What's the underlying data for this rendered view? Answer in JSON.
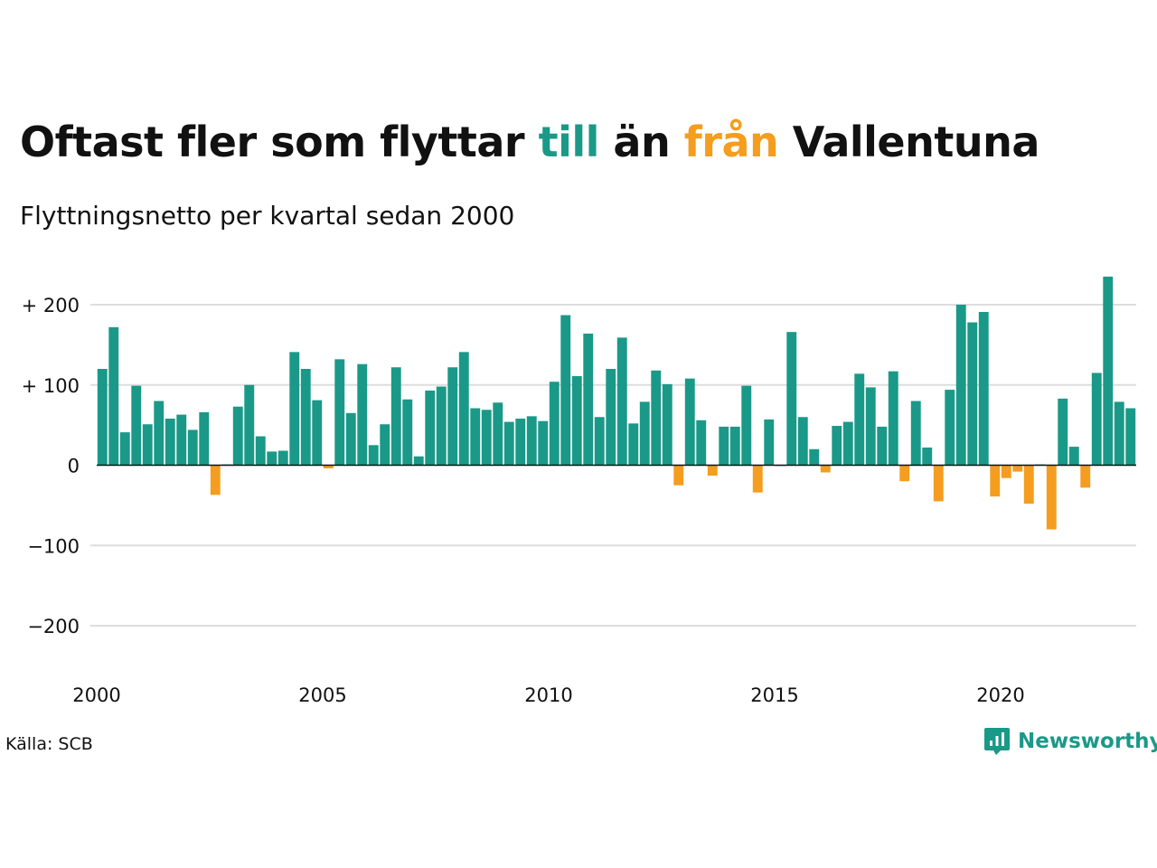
{
  "header": {
    "title_part1": "Oftast fler som flyttar ",
    "title_till": "till",
    "title_part2": " än ",
    "title_fran": "från",
    "title_part3": " Vallentuna",
    "subtitle": "Flyttningsnetto per kvartal sedan 2000"
  },
  "footer": {
    "source": "Källa: SCB",
    "brand": "Newsworthy"
  },
  "colors": {
    "positive": "#1a9988",
    "negative": "#f49d1f",
    "grid": "#dddddd",
    "baseline": "#111111",
    "text": "#111111"
  },
  "icons": [
    "newsworthy-logo-icon"
  ],
  "chart_data": {
    "type": "bar",
    "x_unit": "quarter",
    "x_start": "2000 Q1",
    "x_ticks": [
      2000,
      2005,
      2010,
      2015,
      2020
    ],
    "y_ticks": [
      {
        "value": 200,
        "label": "+ 200"
      },
      {
        "value": 100,
        "label": "+ 100"
      },
      {
        "value": 0,
        "label": "0"
      },
      {
        "value": -100,
        "label": "−100"
      },
      {
        "value": -200,
        "label": "−200"
      }
    ],
    "ylim": [
      -250,
      260
    ],
    "grid": true,
    "values": [
      120,
      172,
      41,
      99,
      51,
      80,
      58,
      63,
      44,
      66,
      -37,
      1,
      73,
      100,
      36,
      17,
      18,
      141,
      120,
      81,
      -4,
      132,
      65,
      126,
      25,
      51,
      122,
      82,
      11,
      93,
      98,
      122,
      141,
      71,
      69,
      78,
      54,
      58,
      61,
      55,
      104,
      187,
      111,
      164,
      60,
      120,
      159,
      52,
      79,
      118,
      101,
      -25,
      108,
      56,
      -13,
      48,
      48,
      99,
      -34,
      57,
      0,
      166,
      60,
      20,
      -9,
      49,
      54,
      114,
      97,
      48,
      117,
      -20,
      80,
      22,
      -45,
      94,
      200,
      178,
      191,
      -39,
      -16,
      -8,
      -48,
      1,
      -80,
      83,
      23,
      -28,
      115,
      235,
      79,
      71
    ]
  }
}
